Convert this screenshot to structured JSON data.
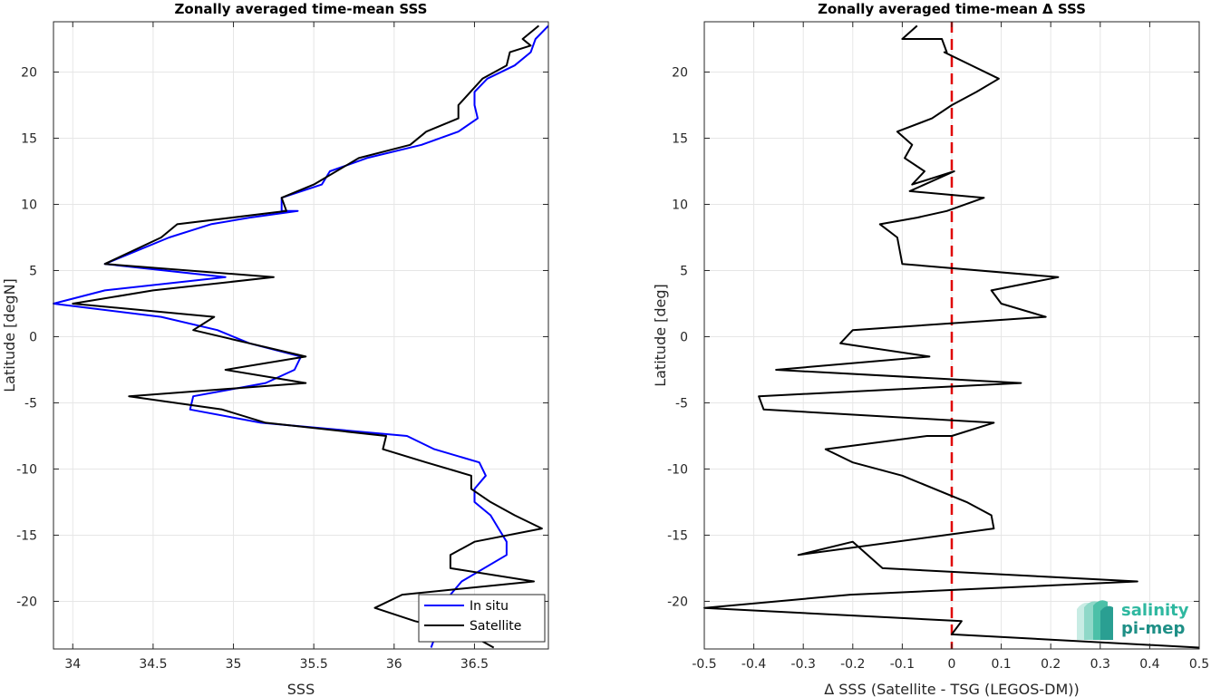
{
  "chart_data": [
    {
      "type": "line",
      "title": "Zonally averaged time-mean SSS",
      "xlabel": "SSS",
      "ylabel": "Latitude [degN]",
      "xlim": [
        33.88,
        36.96
      ],
      "ylim": [
        -23.6,
        23.8
      ],
      "xticks": [
        "34",
        "34.5",
        "35",
        "35.5",
        "36",
        "36.5"
      ],
      "xtick_values": [
        34,
        34.5,
        35,
        35.5,
        36,
        36.5
      ],
      "yticks": [
        "20",
        "15",
        "10",
        "5",
        "0",
        "-5",
        "-10",
        "-15",
        "-20"
      ],
      "ytick_values": [
        20,
        15,
        10,
        5,
        0,
        -5,
        -10,
        -15,
        -20
      ],
      "grid": true,
      "legend_position": "bottom-right",
      "series": [
        {
          "name": "In situ",
          "color": "#0000ff",
          "x": [
            36.96,
            36.88,
            36.85,
            36.75,
            36.58,
            36.5,
            36.5,
            36.52,
            36.4,
            36.17,
            35.83,
            35.6,
            35.55,
            35.3,
            35.3,
            35.4,
            35.1,
            34.86,
            34.6,
            34.4,
            34.2,
            34.95,
            34.2,
            33.88,
            34.55,
            34.9,
            35.1,
            35.42,
            35.38,
            35.2,
            34.75,
            34.73,
            35.17,
            36.08,
            36.25,
            36.53,
            36.57,
            36.5,
            36.5,
            36.6,
            36.65,
            36.7,
            36.7,
            36.42,
            36.35,
            36.23
          ],
          "y": [
            23.5,
            22.5,
            21.5,
            20.5,
            19.5,
            18.5,
            17.5,
            16.5,
            15.5,
            14.5,
            13.5,
            12.5,
            11.5,
            10.5,
            9.5,
            9.5,
            9.0,
            8.5,
            7.5,
            6.5,
            5.5,
            4.5,
            3.5,
            2.5,
            1.5,
            0.5,
            -0.5,
            -1.5,
            -2.5,
            -3.5,
            -4.5,
            -5.5,
            -6.5,
            -7.5,
            -8.5,
            -9.5,
            -10.5,
            -11.5,
            -12.5,
            -13.5,
            -14.5,
            -15.5,
            -16.5,
            -18.5,
            -19.5,
            -23.5
          ]
        },
        {
          "name": "Satellite",
          "color": "#000000",
          "x": [
            36.9,
            36.8,
            36.85,
            36.72,
            36.7,
            36.55,
            36.4,
            36.4,
            36.2,
            36.1,
            35.78,
            35.5,
            35.3,
            35.33,
            34.65,
            34.55,
            34.2,
            35.25,
            34.5,
            34.0,
            34.88,
            34.75,
            35.1,
            35.45,
            34.95,
            35.45,
            34.35,
            34.93,
            35.2,
            35.95,
            35.93,
            36.2,
            36.48,
            36.48,
            36.6,
            36.75,
            36.92,
            36.5,
            36.35,
            36.35,
            36.87,
            36.05,
            35.88,
            36.13,
            36.47,
            36.62
          ],
          "y": [
            23.5,
            22.5,
            22.0,
            21.5,
            20.5,
            19.5,
            17.5,
            16.5,
            15.5,
            14.5,
            13.5,
            11.5,
            10.5,
            9.5,
            8.5,
            7.5,
            5.5,
            4.5,
            3.5,
            2.5,
            1.5,
            0.5,
            -0.5,
            -1.5,
            -2.5,
            -3.5,
            -4.5,
            -5.5,
            -6.5,
            -7.5,
            -8.5,
            -9.5,
            -10.5,
            -11.5,
            -12.5,
            -13.5,
            -14.5,
            -15.5,
            -16.5,
            -17.5,
            -18.5,
            -19.5,
            -20.5,
            -21.5,
            -22.5,
            -23.5
          ]
        }
      ]
    },
    {
      "type": "line",
      "title": "Zonally averaged time-mean Δ SSS",
      "xlabel": "Δ SSS (Satellite - TSG (LEGOS-DM))",
      "ylabel": "Latitude [deg]",
      "xlim": [
        -0.5,
        0.5
      ],
      "ylim": [
        -23.6,
        23.8
      ],
      "xticks": [
        "-0.5",
        "-0.4",
        "-0.3",
        "-0.2",
        "-0.1",
        "0",
        "0.1",
        "0.2",
        "0.3",
        "0.4",
        "0.5"
      ],
      "xtick_values": [
        -0.5,
        -0.4,
        -0.3,
        -0.2,
        -0.1,
        0,
        0.1,
        0.2,
        0.3,
        0.4,
        0.5
      ],
      "yticks": [
        "20",
        "15",
        "10",
        "5",
        "0",
        "-5",
        "-10",
        "-15",
        "-20"
      ],
      "ytick_values": [
        20,
        15,
        10,
        5,
        0,
        -5,
        -10,
        -15,
        -20
      ],
      "grid": true,
      "reference_line": {
        "x": 0,
        "color": "#e00000",
        "style": "dashed"
      },
      "series": [
        {
          "name": "",
          "color": "#000000",
          "x": [
            -0.07,
            -0.1,
            -0.02,
            -0.01,
            -0.015,
            0.095,
            0.05,
            0.0,
            -0.04,
            -0.11,
            -0.08,
            -0.095,
            -0.055,
            -0.08,
            0.005,
            -0.085,
            0.065,
            -0.01,
            -0.07,
            -0.145,
            -0.11,
            -0.11,
            -0.1,
            0.215,
            0.08,
            0.1,
            0.19,
            -0.2,
            -0.225,
            -0.045,
            -0.355,
            0.14,
            -0.39,
            -0.38,
            0.085,
            0.0,
            -0.05,
            -0.255,
            -0.2,
            -0.1,
            0.03,
            0.08,
            0.085,
            -0.31,
            -0.2,
            -0.14,
            0.375,
            -0.205,
            -0.5,
            0.02,
            0.0,
            0.5
          ],
          "y": [
            23.5,
            22.5,
            22.5,
            21.5,
            21.5,
            19.5,
            18.5,
            17.5,
            16.5,
            15.5,
            14.5,
            13.5,
            12.5,
            11.5,
            12.5,
            11.0,
            10.5,
            9.5,
            9.0,
            8.5,
            7.5,
            7.5,
            5.5,
            4.5,
            3.5,
            2.5,
            1.5,
            0.5,
            -0.5,
            -1.5,
            -2.5,
            -3.5,
            -4.5,
            -5.5,
            -6.5,
            -7.5,
            -7.5,
            -8.5,
            -9.5,
            -10.5,
            -12.5,
            -13.5,
            -14.5,
            -16.5,
            -15.5,
            -17.5,
            -18.5,
            -19.5,
            -20.5,
            -21.5,
            -22.5,
            -23.5
          ]
        }
      ]
    }
  ],
  "logo": {
    "word1": "salinity",
    "word2": "pi-mep",
    "color1": "#2fb8a0",
    "color2": "#1e8f86"
  }
}
